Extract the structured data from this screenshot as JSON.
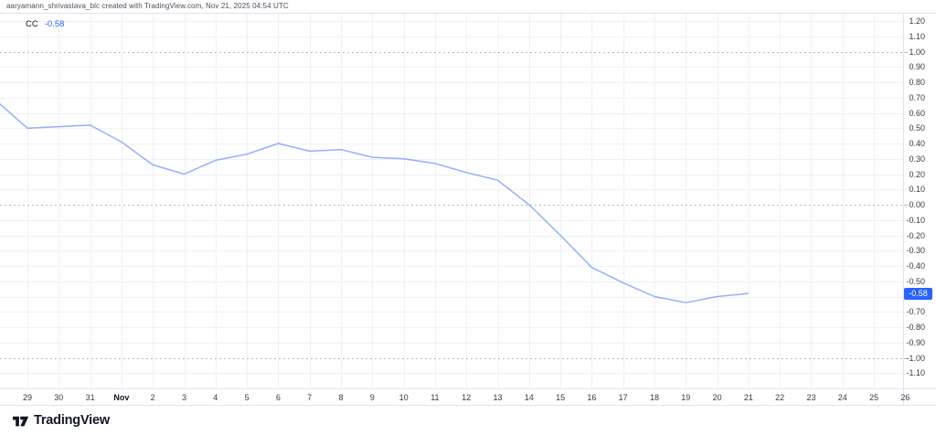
{
  "header": {
    "attribution": "aaryamann_shrivastava_blc created with TradingView.com, Nov 21, 2025 04:54 UTC"
  },
  "legend": {
    "indicator": "CC",
    "value": "-0.58"
  },
  "colors": {
    "accent": "#2962ff",
    "line": "rgba(41,98,255,0.5)",
    "grid": "#f0f1f4",
    "dashed_level": "#b6bac4",
    "border": "#e0e3eb",
    "axis_text": "#363a45",
    "badge_bg": "#2962ff",
    "badge_text": "#ffffff"
  },
  "price_axis": {
    "labels": [
      "1.20",
      "1.10",
      "1.00",
      "0.90",
      "0.80",
      "0.70",
      "0.60",
      "0.50",
      "0.40",
      "0.30",
      "0.20",
      "0.10",
      "0.00",
      "-0.10",
      "-0.20",
      "-0.30",
      "-0.40",
      "-0.50",
      "-0.60",
      "-0.70",
      "-0.80",
      "-0.90",
      "-1.00",
      "-1.10"
    ],
    "dashed_levels": [
      1,
      0,
      -1
    ],
    "badge": "-0.58"
  },
  "time_axis": {
    "labels": [
      "29",
      "30",
      "31",
      "Nov",
      "2",
      "3",
      "4",
      "5",
      "6",
      "7",
      "8",
      "9",
      "10",
      "11",
      "12",
      "13",
      "14",
      "15",
      "16",
      "17",
      "18",
      "19",
      "20",
      "21",
      "22",
      "23",
      "24",
      "25",
      "26"
    ],
    "bold_label": "Nov"
  },
  "chart_data": {
    "type": "line",
    "title": "CC",
    "x": [
      "Oct 28",
      "Oct 29",
      "Oct 30",
      "Oct 31",
      "Nov 1",
      "Nov 2",
      "Nov 3",
      "Nov 4",
      "Nov 5",
      "Nov 6",
      "Nov 7",
      "Nov 8",
      "Nov 9",
      "Nov 10",
      "Nov 11",
      "Nov 12",
      "Nov 13",
      "Nov 14",
      "Nov 15",
      "Nov 16",
      "Nov 17",
      "Nov 18",
      "Nov 19",
      "Nov 20",
      "Nov 21"
    ],
    "values": [
      0.68,
      0.5,
      0.51,
      0.52,
      0.41,
      0.26,
      0.2,
      0.29,
      0.33,
      0.4,
      0.35,
      0.36,
      0.31,
      0.3,
      0.27,
      0.21,
      0.16,
      0.0,
      -0.2,
      -0.41,
      -0.51,
      -0.6,
      -0.64,
      -0.6,
      -0.58
    ],
    "ylim": [
      -1.2,
      1.25
    ],
    "grid": true,
    "legend_position": "top-left",
    "last_value": -0.58
  },
  "footer": {
    "logo_text": "TradingView"
  }
}
